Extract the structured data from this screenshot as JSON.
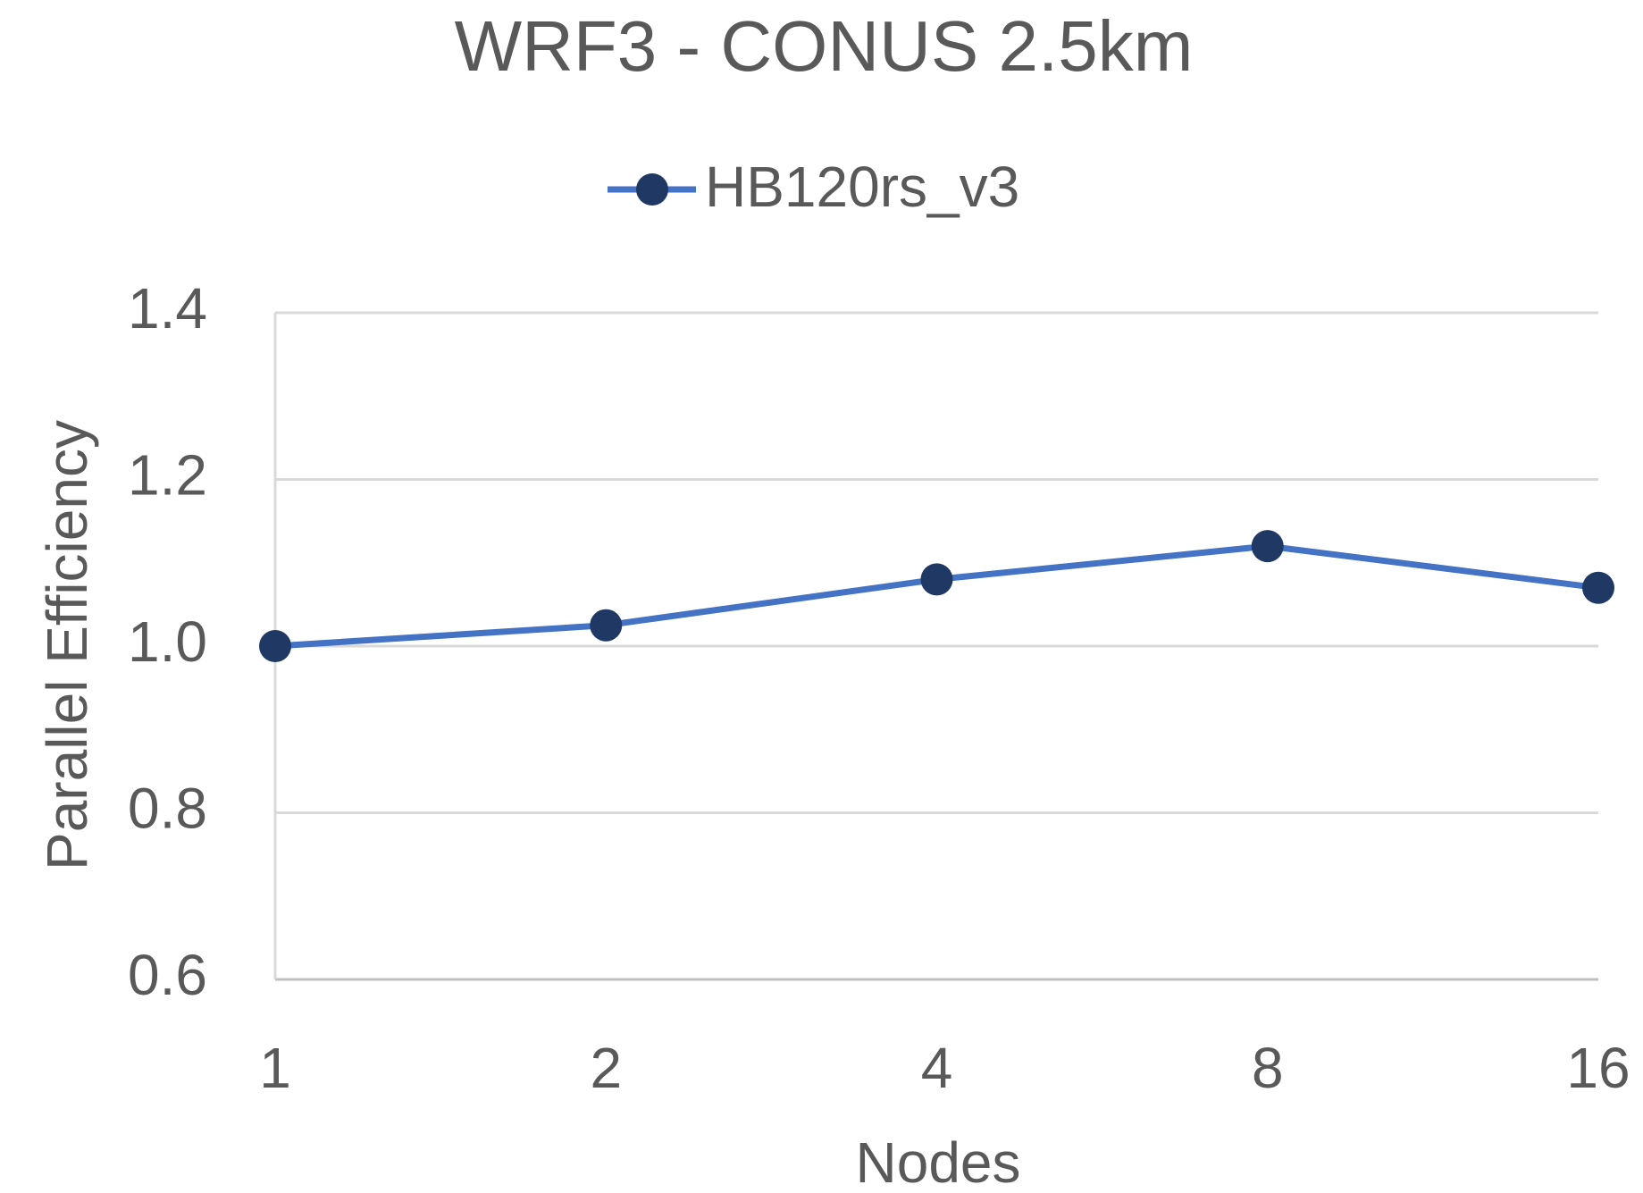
{
  "chart_data": {
    "type": "line",
    "title": "WRF3 - CONUS 2.5km",
    "x_label": "Nodes",
    "y_label": "Parallel Efficiency",
    "categories": [
      "1",
      "2",
      "4",
      "8",
      "16"
    ],
    "series": [
      {
        "name": "HB120rs_v3",
        "color": "#4472c4",
        "marker_color": "#1f3864",
        "values": [
          1.0,
          1.025,
          1.08,
          1.12,
          1.07
        ]
      }
    ],
    "ylim": [
      0.6,
      1.4
    ],
    "yticks": [
      0.6,
      0.8,
      {
        "value": 1,
        "label": "1.0"
      },
      1.2,
      1.4
    ],
    "grid": true,
    "legend": "top"
  }
}
